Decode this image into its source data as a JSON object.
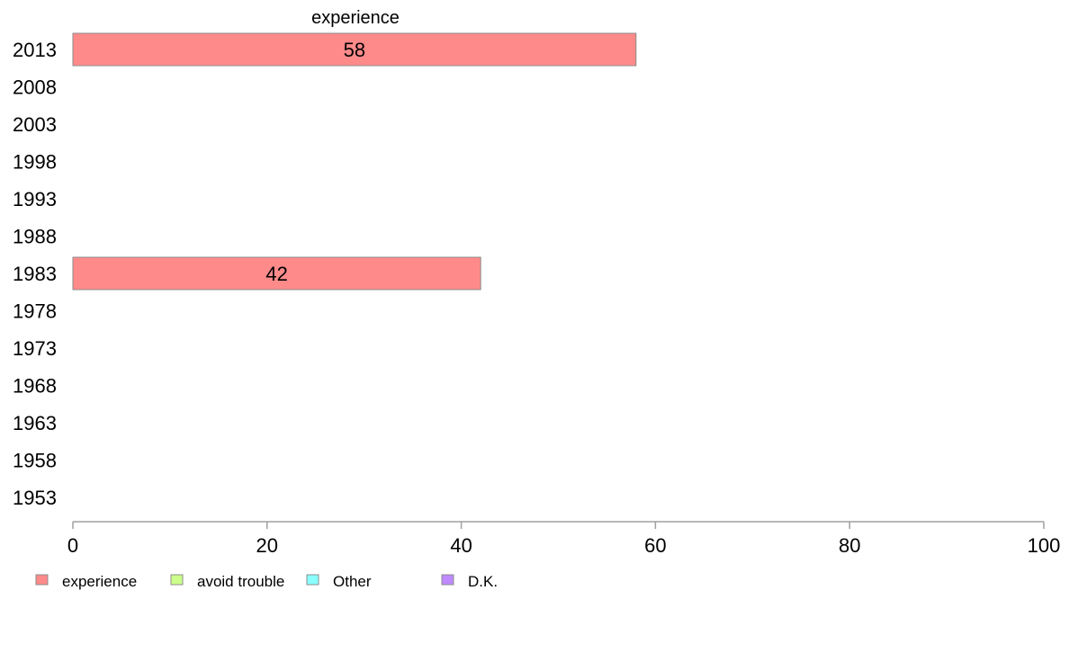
{
  "chart_data": {
    "type": "bar",
    "orientation": "horizontal",
    "stacked": true,
    "categories": [
      "2013",
      "2008",
      "2003",
      "1998",
      "1993",
      "1988",
      "1983",
      "1978",
      "1973",
      "1968",
      "1963",
      "1958",
      "1953"
    ],
    "series": [
      {
        "name": "experience",
        "color": "#ff8a8a",
        "values": [
          58,
          null,
          null,
          null,
          null,
          null,
          42,
          null,
          null,
          null,
          null,
          null,
          null
        ]
      },
      {
        "name": "avoid trouble",
        "color": "#ccff8a",
        "values": [
          null,
          null,
          null,
          null,
          null,
          null,
          null,
          null,
          null,
          null,
          null,
          null,
          null
        ]
      },
      {
        "name": "Other",
        "color": "#8affff",
        "values": [
          null,
          null,
          null,
          null,
          null,
          null,
          null,
          null,
          null,
          null,
          null,
          null,
          null
        ]
      },
      {
        "name": "D.K.",
        "color": "#bf8aff",
        "values": [
          null,
          null,
          null,
          null,
          null,
          null,
          null,
          null,
          null,
          null,
          null,
          null,
          null
        ]
      }
    ],
    "column_labels": [
      "experience"
    ],
    "xlim": [
      0,
      100
    ],
    "xticks": [
      0,
      20,
      40,
      60,
      80,
      100
    ],
    "grid": false,
    "legend": "bottom-left"
  }
}
